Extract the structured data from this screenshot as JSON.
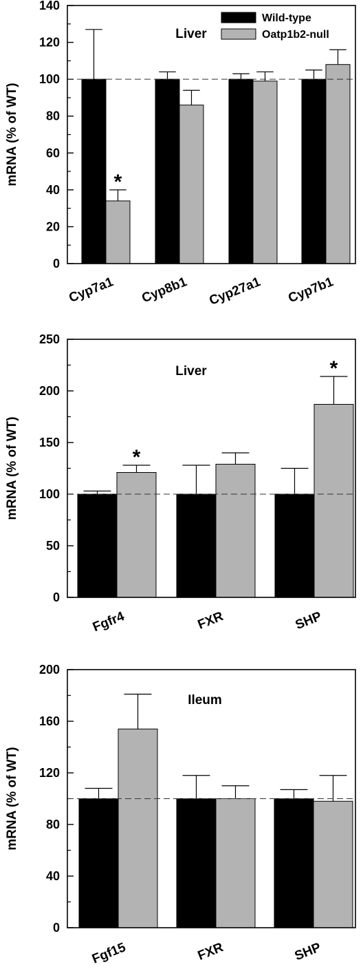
{
  "chart_data": [
    {
      "type": "bar",
      "title": "Liver",
      "ylabel": "mRNA (% of WT)",
      "ylim": [
        0,
        140
      ],
      "yticks": [
        0,
        20,
        40,
        60,
        80,
        100,
        120,
        140
      ],
      "reference_line": 100,
      "categories": [
        "Cyp7a1",
        "Cyp8b1",
        "Cyp27a1",
        "Cyp7b1"
      ],
      "series": [
        {
          "name": "Wild-type",
          "color": "#000000",
          "values": [
            100,
            100,
            100,
            100
          ],
          "errors": [
            27,
            4,
            3,
            5
          ]
        },
        {
          "name": "Oatp1b2-null",
          "color": "#b3b3b3",
          "values": [
            34,
            86,
            99,
            108
          ],
          "errors": [
            6,
            8,
            5,
            8
          ]
        }
      ],
      "significance": [
        {
          "category": "Cyp7a1",
          "series": "Oatp1b2-null",
          "mark": "*"
        }
      ],
      "legend": "top-right"
    },
    {
      "type": "bar",
      "title": "Liver",
      "ylabel": "mRNA (% of WT)",
      "ylim": [
        0,
        250
      ],
      "yticks": [
        0,
        50,
        100,
        150,
        200,
        250
      ],
      "reference_line": 100,
      "categories": [
        "Fgfr4",
        "FXR",
        "SHP"
      ],
      "series": [
        {
          "name": "Wild-type",
          "color": "#000000",
          "values": [
            100,
            100,
            100
          ],
          "errors": [
            3,
            28,
            25
          ]
        },
        {
          "name": "Oatp1b2-null",
          "color": "#b3b3b3",
          "values": [
            121,
            129,
            187
          ],
          "errors": [
            7,
            11,
            27
          ]
        }
      ],
      "significance": [
        {
          "category": "Fgfr4",
          "series": "Oatp1b2-null",
          "mark": "*"
        },
        {
          "category": "SHP",
          "series": "Oatp1b2-null",
          "mark": "*"
        }
      ]
    },
    {
      "type": "bar",
      "title": "Ileum",
      "ylabel": "mRNA (% of WT)",
      "ylim": [
        0,
        200
      ],
      "yticks": [
        0,
        40,
        80,
        120,
        160,
        200
      ],
      "reference_line": 100,
      "categories": [
        "Fgf15",
        "FXR",
        "SHP"
      ],
      "series": [
        {
          "name": "Wild-type",
          "color": "#000000",
          "values": [
            100,
            100,
            100
          ],
          "errors": [
            8,
            18,
            7
          ]
        },
        {
          "name": "Oatp1b2-null",
          "color": "#b3b3b3",
          "values": [
            154,
            100,
            98
          ],
          "errors": [
            27,
            10,
            20
          ]
        }
      ],
      "significance": []
    }
  ]
}
